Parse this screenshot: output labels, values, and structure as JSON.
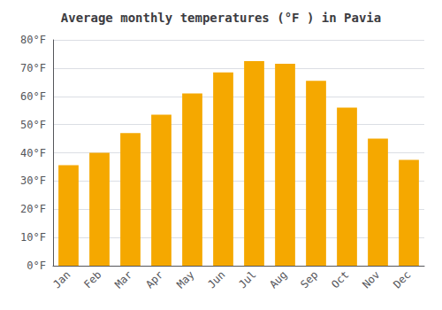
{
  "chart_data": {
    "type": "bar",
    "title": "Average monthly temperatures (°F ) in Pavia",
    "categories": [
      "Jan",
      "Feb",
      "Mar",
      "Apr",
      "May",
      "Jun",
      "Jul",
      "Aug",
      "Sep",
      "Oct",
      "Nov",
      "Dec"
    ],
    "values": [
      35.6,
      40.0,
      47.0,
      53.5,
      61.0,
      68.5,
      72.5,
      71.5,
      65.5,
      56.0,
      45.0,
      37.5
    ],
    "color": "#F5A800",
    "ylim": [
      0,
      80
    ],
    "yticks": [
      {
        "value": 0,
        "label": "0°F"
      },
      {
        "value": 10,
        "label": "10°F"
      },
      {
        "value": 20,
        "label": "20°F"
      },
      {
        "value": 30,
        "label": "30°F"
      },
      {
        "value": 40,
        "label": "40°F"
      },
      {
        "value": 50,
        "label": "50°F"
      },
      {
        "value": 60,
        "label": "60°F"
      },
      {
        "value": 70,
        "label": "70°F"
      },
      {
        "value": 80,
        "label": "80°F"
      }
    ],
    "grid": true
  }
}
